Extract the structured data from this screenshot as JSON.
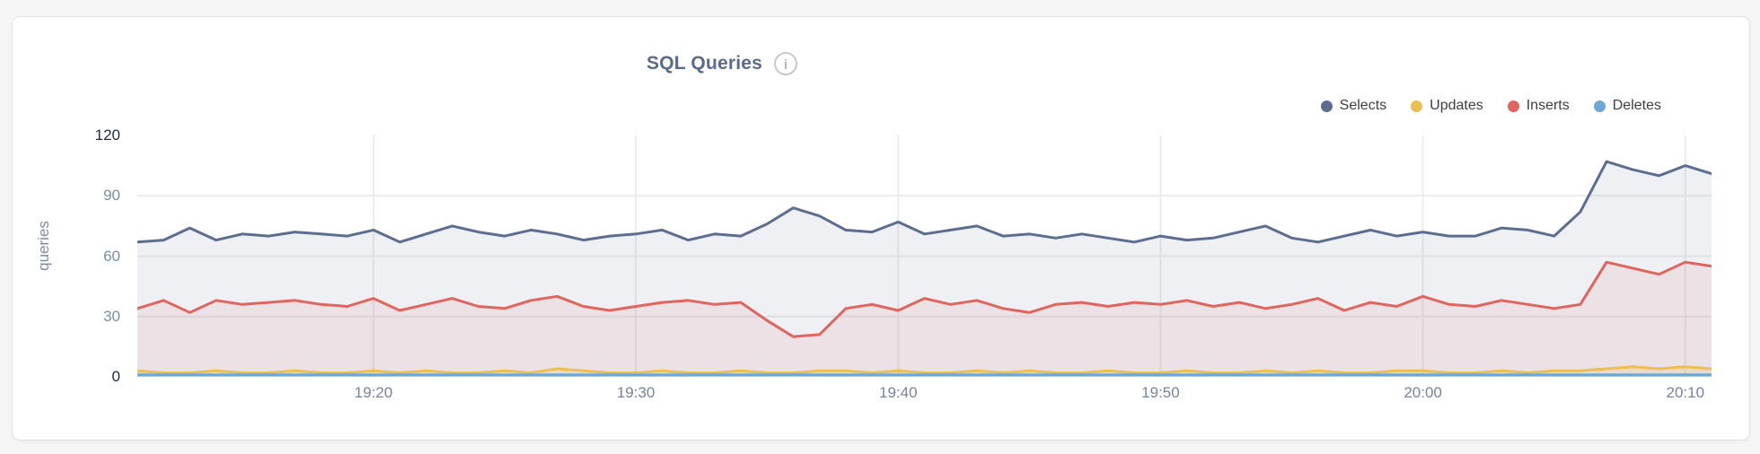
{
  "page": {
    "background": "#f5f5f6"
  },
  "card": {
    "background": "#ffffff",
    "border_color": "#e2e2e5"
  },
  "header": {
    "title": "SQL Queries",
    "info_glyph": "i"
  },
  "legend": {
    "position": "top-right",
    "items": [
      {
        "label": "Selects",
        "color": "#5c6d90"
      },
      {
        "label": "Updates",
        "color": "#ecbf4f"
      },
      {
        "label": "Inserts",
        "color": "#e0655e"
      },
      {
        "label": "Deletes",
        "color": "#68a9d9"
      }
    ]
  },
  "chart_data": {
    "type": "area",
    "title": "SQL Queries",
    "xlabel": "",
    "ylabel": "queries",
    "ylim": [
      0,
      120
    ],
    "grid": true,
    "grid_color": "#ececec",
    "legend_position": "top-right",
    "x_range": [
      "19:11",
      "20:11"
    ],
    "x_interval_minutes": 1,
    "yticks": [
      {
        "label": "0",
        "value": 0,
        "emphasis": true
      },
      {
        "label": "30",
        "value": 30,
        "emphasis": false
      },
      {
        "label": "60",
        "value": 60,
        "emphasis": false
      },
      {
        "label": "90",
        "value": 90,
        "emphasis": false
      },
      {
        "label": "120",
        "value": 120,
        "emphasis": true
      }
    ],
    "xticks": [
      {
        "label": "19:20",
        "index": 9
      },
      {
        "label": "19:30",
        "index": 19
      },
      {
        "label": "19:40",
        "index": 29
      },
      {
        "label": "19:50",
        "index": 39
      },
      {
        "label": "20:00",
        "index": 49
      },
      {
        "label": "20:10",
        "index": 59
      }
    ],
    "series": [
      {
        "name": "Selects",
        "color": "#5c6d90",
        "fill": "rgba(92,109,144,0.10)",
        "values": [
          67,
          68,
          74,
          68,
          71,
          70,
          72,
          71,
          70,
          73,
          67,
          71,
          75,
          72,
          70,
          73,
          71,
          68,
          70,
          71,
          73,
          68,
          71,
          70,
          76,
          84,
          80,
          73,
          72,
          77,
          71,
          73,
          75,
          70,
          71,
          69,
          71,
          69,
          67,
          70,
          68,
          69,
          72,
          75,
          69,
          67,
          70,
          73,
          70,
          72,
          70,
          70,
          74,
          73,
          70,
          82,
          107,
          103,
          100,
          105,
          101
        ]
      },
      {
        "name": "Inserts",
        "color": "#e0655e",
        "fill": "rgba(224,101,94,0.10)",
        "values": [
          34,
          38,
          32,
          38,
          36,
          37,
          38,
          36,
          35,
          39,
          33,
          36,
          39,
          35,
          34,
          38,
          40,
          35,
          33,
          35,
          37,
          38,
          36,
          37,
          28,
          20,
          21,
          34,
          36,
          33,
          39,
          36,
          38,
          34,
          32,
          36,
          37,
          35,
          37,
          36,
          38,
          35,
          37,
          34,
          36,
          39,
          33,
          37,
          35,
          40,
          36,
          35,
          38,
          36,
          34,
          36,
          57,
          54,
          51,
          57,
          55
        ]
      },
      {
        "name": "Updates",
        "color": "#ecbf4f",
        "fill": "rgba(236,191,79,0.18)",
        "values": [
          3,
          2,
          2,
          3,
          2,
          2,
          3,
          2,
          2,
          3,
          2,
          3,
          2,
          2,
          3,
          2,
          4,
          3,
          2,
          2,
          3,
          2,
          2,
          3,
          2,
          2,
          3,
          3,
          2,
          3,
          2,
          2,
          3,
          2,
          3,
          2,
          2,
          3,
          2,
          2,
          3,
          2,
          2,
          3,
          2,
          3,
          2,
          2,
          3,
          3,
          2,
          2,
          3,
          2,
          3,
          3,
          4,
          5,
          4,
          5,
          4
        ]
      },
      {
        "name": "Deletes",
        "color": "#68a9d9",
        "fill": "rgba(104,169,217,0.18)",
        "values": [
          1,
          1,
          1,
          1,
          1,
          1,
          1,
          1,
          1,
          1,
          1,
          1,
          1,
          1,
          1,
          1,
          1,
          1,
          1,
          1,
          1,
          1,
          1,
          1,
          1,
          1,
          1,
          1,
          1,
          1,
          1,
          1,
          1,
          1,
          1,
          1,
          1,
          1,
          1,
          1,
          1,
          1,
          1,
          1,
          1,
          1,
          1,
          1,
          1,
          1,
          1,
          1,
          1,
          1,
          1,
          1,
          1,
          1,
          1,
          1,
          1
        ]
      }
    ]
  }
}
